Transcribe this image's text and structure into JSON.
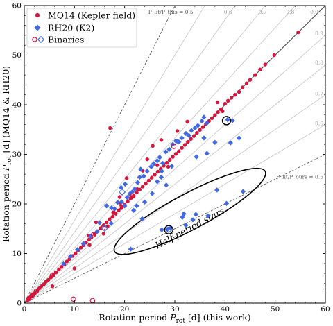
{
  "chart_data": {
    "type": "scatter",
    "xlabel": "Rotation period P_rot [d] (this work)",
    "ylabel": "Rotation period P_rot [d] (MQ14 & RH20)",
    "xlabel_parts": {
      "pre": "Rotation period ",
      "sym": "P",
      "sub": "rot",
      "post": " [d] (this work)"
    },
    "ylabel_parts": {
      "pre": "Rotation period ",
      "sym": "P",
      "sub": "rot",
      "post": " [d] (MQ14 & RH20)"
    },
    "xlim": [
      0,
      60
    ],
    "ylim": [
      0,
      60
    ],
    "xticks": [
      0,
      10,
      20,
      30,
      40,
      50,
      60
    ],
    "yticks": [
      0,
      10,
      20,
      30,
      40,
      50,
      60
    ],
    "legend": {
      "placement": "top-left",
      "entries": [
        "MQ14 (Kepler field)",
        "RH20 (K2)",
        "Binaries"
      ]
    },
    "reference_lines": {
      "upper_ratios": [
        0.6,
        0.7,
        0.8,
        0.9
      ],
      "lower_ratios": [
        0.6,
        0.7,
        0.8,
        0.9
      ],
      "upper_labels": [
        "P_lit/P_this = 0.5",
        "0.6",
        "0.7",
        "0.8",
        "0.9"
      ],
      "right_labels": [
        "0.9",
        "0.8",
        "0.7",
        "0.6",
        "P_lit/P_ours = 0.5"
      ]
    },
    "annotation": {
      "text": "Half-period stars",
      "center": [
        33,
        18.5
      ],
      "semi_axis_data": [
        17,
        3.6
      ],
      "angle_deg": 28
    },
    "colors": {
      "mq14": "#d6153c",
      "rh20": "#4169e1",
      "one_to_one": "#444444",
      "half": "#555555",
      "ratio_lines": "#c8c8c8"
    },
    "series": [
      {
        "name": "MQ14 (Kepler field)",
        "marker": "circle",
        "points": [
          [
            0.6,
            0.5
          ],
          [
            0.9,
            0.9
          ],
          [
            1.3,
            1.3
          ],
          [
            1.7,
            1.7
          ],
          [
            2.1,
            2.0
          ],
          [
            2.6,
            2.5
          ],
          [
            3.0,
            3.0
          ],
          [
            3.4,
            3.4
          ],
          [
            3.9,
            3.8
          ],
          [
            4.3,
            4.3
          ],
          [
            4.8,
            4.7
          ],
          [
            5.3,
            5.2
          ],
          [
            5.8,
            5.7
          ],
          [
            6.3,
            6.2
          ],
          [
            6.9,
            6.8
          ],
          [
            7.4,
            7.3
          ],
          [
            8.0,
            7.8
          ],
          [
            8.5,
            8.4
          ],
          [
            9.0,
            8.9
          ],
          [
            9.6,
            9.5
          ],
          [
            10.2,
            10.0
          ],
          [
            10.7,
            10.6
          ],
          [
            11.3,
            11.2
          ],
          [
            11.8,
            11.7
          ],
          [
            12.3,
            12.2
          ],
          [
            12.9,
            12.8
          ],
          [
            13.4,
            13.3
          ],
          [
            14.0,
            13.9
          ],
          [
            14.6,
            14.5
          ],
          [
            15.2,
            15.1
          ],
          [
            15.8,
            15.7
          ],
          [
            16.4,
            16.3
          ],
          [
            17.0,
            16.9
          ],
          [
            17.6,
            17.4
          ],
          [
            18.2,
            18.1
          ],
          [
            18.8,
            18.7
          ],
          [
            19.4,
            19.3
          ],
          [
            20.0,
            19.9
          ],
          [
            20.6,
            20.5
          ],
          [
            21.2,
            21.1
          ],
          [
            21.8,
            21.6
          ],
          [
            22.4,
            22.3
          ],
          [
            23.0,
            22.9
          ],
          [
            23.6,
            23.5
          ],
          [
            24.2,
            24.1
          ],
          [
            24.8,
            24.7
          ],
          [
            25.4,
            25.3
          ],
          [
            26.0,
            25.9
          ],
          [
            26.6,
            26.5
          ],
          [
            27.2,
            27.1
          ],
          [
            27.8,
            27.7
          ],
          [
            28.4,
            28.3
          ],
          [
            29.0,
            28.9
          ],
          [
            29.6,
            29.5
          ],
          [
            30.2,
            30.1
          ],
          [
            30.8,
            30.6
          ],
          [
            31.4,
            31.3
          ],
          [
            32.0,
            31.9
          ],
          [
            32.6,
            32.5
          ],
          [
            33.2,
            33.1
          ],
          [
            33.8,
            33.7
          ],
          [
            34.4,
            34.3
          ],
          [
            35.0,
            34.9
          ],
          [
            35.6,
            35.5
          ],
          [
            36.2,
            36.1
          ],
          [
            36.8,
            36.7
          ],
          [
            37.4,
            37.3
          ],
          [
            38.0,
            37.9
          ],
          [
            38.6,
            38.5
          ],
          [
            39.2,
            39.1
          ],
          [
            40.0,
            40.2
          ],
          [
            40.6,
            40.8
          ],
          [
            41.3,
            41.4
          ],
          [
            42.0,
            42.0
          ],
          [
            42.8,
            42.6
          ],
          [
            43.5,
            43.5
          ],
          [
            44.3,
            44.3
          ],
          [
            45.0,
            45.0
          ],
          [
            46.0,
            46.0
          ],
          [
            47.0,
            47.1
          ],
          [
            48.0,
            48.1
          ],
          [
            49.8,
            50.0
          ],
          [
            54.6,
            54.6
          ],
          [
            17.1,
            35.3
          ],
          [
            38.5,
            40.5
          ],
          [
            39.5,
            38.7
          ],
          [
            32.5,
            36.6
          ],
          [
            30.5,
            34.7
          ],
          [
            27.3,
            32.9
          ],
          [
            25.6,
            31.7
          ],
          [
            24.5,
            29.0
          ],
          [
            23.6,
            26.7
          ],
          [
            20.4,
            25.2
          ],
          [
            21.3,
            21.4
          ],
          [
            19.5,
            19.5
          ],
          [
            19.2,
            20.2
          ],
          [
            17.7,
            18.3
          ],
          [
            16.6,
            15.5
          ],
          [
            15.8,
            14.0
          ],
          [
            13.0,
            11.7
          ],
          [
            12.8,
            13.6
          ],
          [
            10.0,
            7.0
          ],
          [
            5.6,
            3.4
          ],
          [
            19.0,
            21.4
          ],
          [
            22.5,
            23.0
          ],
          [
            26.5,
            27.8
          ],
          [
            28.7,
            27.5
          ],
          [
            14.3,
            16.3
          ]
        ]
      },
      {
        "name": "RH20 (K2)",
        "marker": "diamond",
        "points": [
          [
            7.8,
            7.9
          ],
          [
            9.2,
            9.4
          ],
          [
            10.6,
            10.8
          ],
          [
            11.8,
            12.0
          ],
          [
            13.2,
            13.5
          ],
          [
            14.5,
            14.4
          ],
          [
            15.0,
            16.2
          ],
          [
            16.4,
            19.6
          ],
          [
            17.4,
            19.2
          ],
          [
            17.3,
            16.1
          ],
          [
            18.0,
            19.0
          ],
          [
            18.6,
            20.3
          ],
          [
            19.4,
            20.4
          ],
          [
            20.0,
            19.6
          ],
          [
            20.5,
            21.3
          ],
          [
            21.0,
            22.0
          ],
          [
            21.5,
            22.4
          ],
          [
            22.0,
            23.0
          ],
          [
            22.6,
            24.3
          ],
          [
            23.0,
            25.4
          ],
          [
            23.2,
            27.0
          ],
          [
            23.8,
            25.6
          ],
          [
            24.5,
            26.6
          ],
          [
            25.3,
            27.5
          ],
          [
            25.8,
            28.1
          ],
          [
            26.5,
            28.7
          ],
          [
            27.0,
            29.4
          ],
          [
            27.6,
            28.2
          ],
          [
            28.2,
            30.5
          ],
          [
            28.9,
            31.0
          ],
          [
            29.6,
            32.0
          ],
          [
            30.2,
            32.7
          ],
          [
            30.8,
            32.5
          ],
          [
            31.4,
            33.3
          ],
          [
            32.2,
            34.2
          ],
          [
            32.8,
            33.8
          ],
          [
            33.3,
            34.8
          ],
          [
            34.0,
            35.3
          ],
          [
            34.6,
            35.8
          ],
          [
            35.4,
            36.7
          ],
          [
            35.8,
            37.5
          ],
          [
            36.4,
            36.3
          ],
          [
            20.1,
            24.0
          ],
          [
            19.3,
            23.3
          ],
          [
            21.8,
            18.7
          ],
          [
            22.4,
            19.6
          ],
          [
            23.5,
            17.0
          ],
          [
            24.0,
            20.4
          ],
          [
            25.5,
            22.1
          ],
          [
            26.5,
            24.5
          ],
          [
            27.3,
            25.4
          ],
          [
            27.4,
            26.6
          ],
          [
            28.3,
            23.8
          ],
          [
            29.4,
            27.6
          ],
          [
            30.5,
            32.6
          ],
          [
            34.3,
            29.5
          ],
          [
            35.8,
            33.3
          ],
          [
            36.4,
            30.2
          ],
          [
            38.0,
            32.4
          ],
          [
            40.5,
            37.0
          ],
          [
            41.5,
            36.8
          ],
          [
            42.8,
            33.3
          ],
          [
            41.1,
            32.3
          ],
          [
            21.2,
            10.9
          ],
          [
            27.4,
            14.8
          ],
          [
            28.5,
            14.9
          ],
          [
            29.2,
            15.2
          ],
          [
            31.5,
            17.3
          ],
          [
            31.8,
            18.0
          ],
          [
            32.2,
            15.7
          ],
          [
            33.6,
            16.8
          ],
          [
            34.2,
            17.9
          ],
          [
            36.6,
            17.6
          ],
          [
            38.4,
            22.8
          ],
          [
            40.3,
            20.1
          ],
          [
            43.6,
            22.5
          ]
        ]
      },
      {
        "name": "Binaries",
        "marker": "open",
        "circles": [
          [
            0.9,
            0.9
          ],
          [
            1.6,
            1.6
          ],
          [
            2.4,
            2.4
          ],
          [
            5.6,
            5.6
          ],
          [
            13.8,
            13.8
          ],
          [
            15.7,
            15.2
          ],
          [
            18.0,
            18.0
          ],
          [
            19.3,
            19.3
          ],
          [
            21.6,
            21.6
          ],
          [
            29.8,
            31.6
          ],
          [
            9.8,
            0.8
          ],
          [
            13.6,
            0.5
          ]
        ],
        "diamonds": [
          [
            19.5,
            22.4
          ],
          [
            16.0,
            15.1
          ],
          [
            28.8,
            14.8
          ]
        ]
      }
    ],
    "highlighted": [
      [
        40.3,
        36.8
      ],
      [
        28.8,
        14.8
      ]
    ]
  }
}
